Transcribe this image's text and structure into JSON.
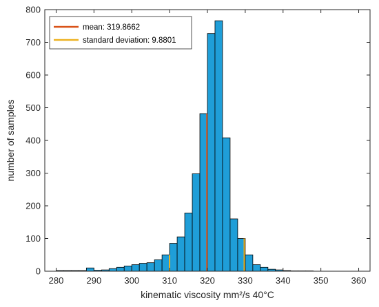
{
  "chart_data": {
    "type": "bar",
    "xlabel": "kinematic viscosity mm²/s 40°C",
    "ylabel": "number of samples",
    "xlim": [
      277,
      363
    ],
    "ylim": [
      0,
      800
    ],
    "xticks": [
      280,
      290,
      300,
      310,
      320,
      330,
      340,
      350,
      360
    ],
    "yticks": [
      0,
      100,
      200,
      300,
      400,
      500,
      600,
      700,
      800
    ],
    "grid": false,
    "legend_position": "top-left",
    "bin_width": 2,
    "bins": [
      {
        "x0": 280,
        "x1": 282,
        "count": 2
      },
      {
        "x0": 282,
        "x1": 284,
        "count": 2
      },
      {
        "x0": 284,
        "x1": 286,
        "count": 2
      },
      {
        "x0": 286,
        "x1": 288,
        "count": 2
      },
      {
        "x0": 288,
        "x1": 290,
        "count": 10
      },
      {
        "x0": 290,
        "x1": 292,
        "count": 3
      },
      {
        "x0": 292,
        "x1": 294,
        "count": 4
      },
      {
        "x0": 294,
        "x1": 296,
        "count": 8
      },
      {
        "x0": 296,
        "x1": 298,
        "count": 12
      },
      {
        "x0": 298,
        "x1": 300,
        "count": 16
      },
      {
        "x0": 300,
        "x1": 302,
        "count": 20
      },
      {
        "x0": 302,
        "x1": 304,
        "count": 24
      },
      {
        "x0": 304,
        "x1": 306,
        "count": 26
      },
      {
        "x0": 306,
        "x1": 308,
        "count": 35
      },
      {
        "x0": 308,
        "x1": 310,
        "count": 50
      },
      {
        "x0": 310,
        "x1": 312,
        "count": 85
      },
      {
        "x0": 312,
        "x1": 314,
        "count": 105
      },
      {
        "x0": 314,
        "x1": 316,
        "count": 178
      },
      {
        "x0": 316,
        "x1": 318,
        "count": 298
      },
      {
        "x0": 318,
        "x1": 320,
        "count": 482
      },
      {
        "x0": 320,
        "x1": 322,
        "count": 727
      },
      {
        "x0": 322,
        "x1": 324,
        "count": 766
      },
      {
        "x0": 324,
        "x1": 326,
        "count": 408
      },
      {
        "x0": 326,
        "x1": 328,
        "count": 160
      },
      {
        "x0": 328,
        "x1": 330,
        "count": 100
      },
      {
        "x0": 330,
        "x1": 332,
        "count": 50
      },
      {
        "x0": 332,
        "x1": 334,
        "count": 20
      },
      {
        "x0": 334,
        "x1": 336,
        "count": 12
      },
      {
        "x0": 336,
        "x1": 338,
        "count": 6
      },
      {
        "x0": 338,
        "x1": 340,
        "count": 4
      },
      {
        "x0": 340,
        "x1": 342,
        "count": 2
      },
      {
        "x0": 342,
        "x1": 344,
        "count": 1
      },
      {
        "x0": 344,
        "x1": 346,
        "count": 1
      },
      {
        "x0": 346,
        "x1": 348,
        "count": 1
      }
    ],
    "lines": [
      {
        "label": "mean: 319.8662",
        "x": 319.8662,
        "color": "#d95319"
      },
      {
        "label": "standard deviation: 9.8801",
        "x": 309.9861,
        "color": "#edb120"
      },
      {
        "x": 329.7463,
        "color": "#edb120"
      }
    ]
  },
  "colors": {
    "bar_fill": "#1f9ed8",
    "bar_edge": "#000000",
    "axis": "#262626",
    "mean_line": "#d95319",
    "std_line": "#edb120"
  }
}
